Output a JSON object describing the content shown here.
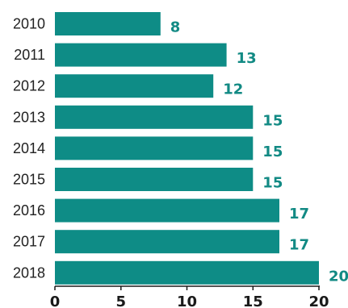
{
  "chart_data": {
    "type": "bar",
    "orientation": "horizontal",
    "categories": [
      "2010",
      "2011",
      "2012",
      "2013",
      "2014",
      "2015",
      "2016",
      "2017",
      "2018"
    ],
    "values": [
      8,
      13,
      12,
      15,
      15,
      15,
      17,
      17,
      20
    ],
    "xlim": [
      0,
      20
    ],
    "xticks": [
      "0",
      "5",
      "10",
      "15",
      "20"
    ],
    "title": "",
    "xlabel": "",
    "ylabel": "",
    "grid": false,
    "colors": {
      "bar": "#0e8c86",
      "value_label": "#128a84",
      "axis": "#1a1a1a"
    }
  }
}
